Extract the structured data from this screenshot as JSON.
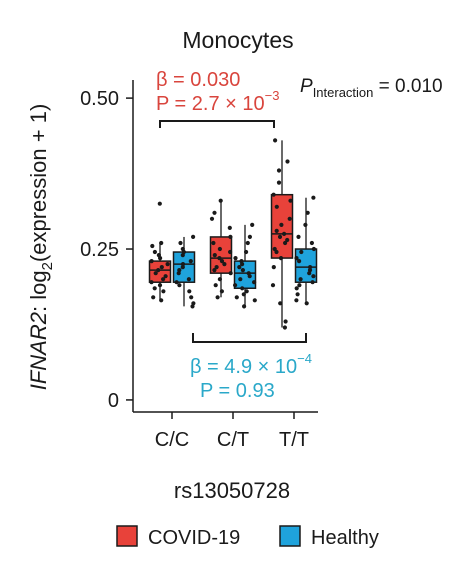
{
  "chart_data": {
    "type": "box",
    "title": "Monocytes",
    "ylabel_gene": "IFNAR2",
    "ylabel_rest": ": log",
    "ylabel_sub": "2",
    "ylabel_tail": "(expression + 1)",
    "xlabel": "rs13050728",
    "categories": [
      "C/C",
      "C/T",
      "T/T"
    ],
    "yticks": [
      {
        "value": 0,
        "label": "0"
      },
      {
        "value": 0.25,
        "label": "0.25"
      },
      {
        "value": 0.5,
        "label": "0.50"
      }
    ],
    "ylim": [
      -0.02,
      0.53
    ],
    "colors": {
      "COVID-19": "#e8423a",
      "Healthy": "#1fa3dc",
      "annot_red": "#d9453d",
      "annot_blue": "#2aa8c9"
    },
    "series": [
      {
        "name": "COVID-19",
        "boxes": [
          {
            "category": "C/C",
            "whisker_low": 0.165,
            "q1": 0.195,
            "median": 0.215,
            "q3": 0.23,
            "whisker_high": 0.26,
            "points": [
              0.325,
              0.26,
              0.255,
              0.245,
              0.24,
              0.235,
              0.23,
              0.225,
              0.22,
              0.215,
              0.21,
              0.205,
              0.2,
              0.195,
              0.19,
              0.185,
              0.18,
              0.17,
              0.165
            ]
          },
          {
            "category": "C/T",
            "whisker_low": 0.17,
            "q1": 0.21,
            "median": 0.235,
            "q3": 0.27,
            "whisker_high": 0.33,
            "points": [
              0.33,
              0.31,
              0.3,
              0.285,
              0.27,
              0.26,
              0.25,
              0.245,
              0.24,
              0.235,
              0.23,
              0.225,
              0.22,
              0.215,
              0.21,
              0.2,
              0.19,
              0.18,
              0.17
            ]
          },
          {
            "category": "T/T",
            "whisker_low": 0.12,
            "q1": 0.235,
            "median": 0.275,
            "q3": 0.34,
            "whisker_high": 0.43,
            "points": [
              0.43,
              0.395,
              0.38,
              0.36,
              0.34,
              0.33,
              0.32,
              0.3,
              0.29,
              0.28,
              0.275,
              0.27,
              0.265,
              0.26,
              0.25,
              0.245,
              0.235,
              0.22,
              0.19,
              0.16,
              0.13,
              0.12
            ]
          }
        ]
      },
      {
        "name": "Healthy",
        "boxes": [
          {
            "category": "C/C",
            "whisker_low": 0.155,
            "q1": 0.195,
            "median": 0.225,
            "q3": 0.245,
            "whisker_high": 0.27,
            "points": [
              0.27,
              0.26,
              0.25,
              0.245,
              0.24,
              0.23,
              0.225,
              0.22,
              0.215,
              0.21,
              0.2,
              0.195,
              0.19,
              0.18,
              0.17,
              0.16,
              0.155
            ]
          },
          {
            "category": "C/T",
            "whisker_low": 0.155,
            "q1": 0.185,
            "median": 0.21,
            "q3": 0.23,
            "whisker_high": 0.29,
            "points": [
              0.29,
              0.27,
              0.26,
              0.245,
              0.235,
              0.23,
              0.225,
              0.22,
              0.215,
              0.21,
              0.205,
              0.2,
              0.195,
              0.19,
              0.185,
              0.18,
              0.175,
              0.17,
              0.165,
              0.155
            ]
          },
          {
            "category": "T/T",
            "whisker_low": 0.16,
            "q1": 0.195,
            "median": 0.22,
            "q3": 0.25,
            "whisker_high": 0.335,
            "points": [
              0.335,
              0.31,
              0.29,
              0.27,
              0.26,
              0.25,
              0.245,
              0.235,
              0.23,
              0.22,
              0.215,
              0.21,
              0.205,
              0.2,
              0.195,
              0.19,
              0.185,
              0.175,
              0.165,
              0.16
            ]
          }
        ]
      }
    ],
    "annotations": {
      "covid": {
        "beta": "β = 0.030",
        "p_prefix": "P = 2.7 × 10",
        "p_exp": "−3"
      },
      "interaction": {
        "p": "P",
        "sub": "Interaction",
        "value": " = 0.010"
      },
      "healthy": {
        "beta_prefix": "β = 4.9 × 10",
        "beta_exp": "−4",
        "p": "P = 0.93"
      }
    },
    "legend": {
      "placement": "bottom",
      "entries": [
        "COVID-19",
        "Healthy"
      ]
    }
  }
}
